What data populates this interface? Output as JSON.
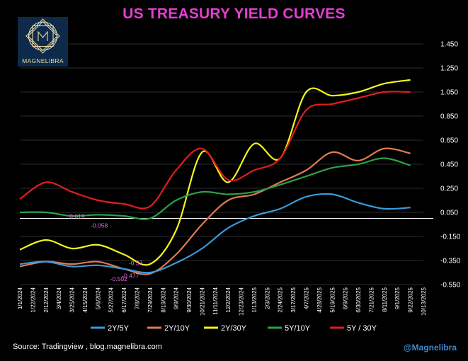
{
  "chart_data": {
    "type": "line",
    "title": "US TREASURY YIELD CURVES",
    "xlabel": "",
    "ylabel": "",
    "ylim": [
      -0.55,
      1.45
    ],
    "yticks": [
      "1.450",
      "1.250",
      "1.050",
      "0.850",
      "0.650",
      "0.450",
      "0.250",
      "0.050",
      "-0.150",
      "-0.350",
      "-0.550"
    ],
    "x_ticks": [
      "1/1/2024",
      "1/22/2024",
      "2/12/2024",
      "3/4/2024",
      "3/25/2024",
      "4/15/2024",
      "5/6/2024",
      "5/27/2024",
      "6/17/2024",
      "7/8/2024",
      "7/29/2024",
      "8/19/2024",
      "9/9/2024",
      "9/30/2024",
      "10/21/2024",
      "11/11/2024",
      "12/2/2024",
      "12/23/2024",
      "1/13/2025",
      "2/3/2025",
      "2/24/2025",
      "3/17/2025",
      "4/7/2025",
      "4/28/2025",
      "5/19/2025",
      "6/9/2025",
      "6/30/2025",
      "7/21/2025",
      "8/11/2025",
      "9/1/2025",
      "9/22/2025",
      "10/13/2025"
    ],
    "grid": true,
    "legend_position": "bottom",
    "series": [
      {
        "name": "2Y/5Y",
        "color": "#3a9ad9",
        "x": [
          0,
          2,
          4,
          6,
          8,
          10,
          12,
          14,
          16,
          18,
          20,
          22,
          24,
          26,
          28,
          30
        ],
        "values": [
          -0.38,
          -0.36,
          -0.4,
          -0.39,
          -0.42,
          -0.45,
          -0.37,
          -0.25,
          -0.08,
          0.02,
          0.08,
          0.18,
          0.2,
          0.13,
          0.08,
          0.09
        ]
      },
      {
        "name": "2Y/10Y",
        "color": "#e07b4f",
        "x": [
          0,
          2,
          4,
          6,
          8,
          10,
          12,
          14,
          16,
          18,
          20,
          22,
          24,
          26,
          28,
          30
        ],
        "values": [
          -0.4,
          -0.36,
          -0.38,
          -0.36,
          -0.42,
          -0.46,
          -0.3,
          -0.05,
          0.15,
          0.2,
          0.3,
          0.4,
          0.55,
          0.48,
          0.58,
          0.54
        ]
      },
      {
        "name": "2Y/30Y",
        "color": "#f5f51c",
        "x": [
          0,
          2,
          4,
          6,
          8,
          10,
          12,
          14,
          16,
          18,
          20,
          22,
          24,
          26,
          28,
          30
        ],
        "values": [
          -0.26,
          -0.18,
          -0.25,
          -0.22,
          -0.3,
          -0.38,
          -0.1,
          0.55,
          0.3,
          0.62,
          0.5,
          1.05,
          1.02,
          1.05,
          1.12,
          1.15
        ]
      },
      {
        "name": "5Y/10Y",
        "color": "#2aa14a",
        "x": [
          0,
          2,
          4,
          6,
          8,
          10,
          12,
          14,
          16,
          18,
          20,
          22,
          24,
          26,
          28,
          30
        ],
        "values": [
          0.05,
          0.05,
          0.02,
          0.03,
          0.02,
          0.0,
          0.15,
          0.22,
          0.2,
          0.22,
          0.28,
          0.35,
          0.42,
          0.45,
          0.5,
          0.44
        ]
      },
      {
        "name": "5Y / 30Y",
        "color": "#e21d1d",
        "x": [
          0,
          2,
          4,
          6,
          8,
          10,
          12,
          14,
          16,
          18,
          20,
          22,
          24,
          26,
          28,
          30
        ],
        "values": [
          0.16,
          0.3,
          0.22,
          0.15,
          0.12,
          0.1,
          0.4,
          0.58,
          0.32,
          0.4,
          0.5,
          0.9,
          0.95,
          1.0,
          1.05,
          1.05
        ]
      }
    ],
    "annotations": [
      {
        "text": "0.019",
        "x": 4.4,
        "y": 0.019,
        "color": "#e26ad3"
      },
      {
        "text": "-0.058",
        "x": 6.1,
        "y": -0.058,
        "color": "#e26ad3"
      },
      {
        "text": "-0.37",
        "x": 8.9,
        "y": -0.37,
        "color": "#e26ad3"
      },
      {
        "text": "-0.477",
        "x": 8.5,
        "y": -0.477,
        "color": "#e26ad3"
      },
      {
        "text": "-0.502",
        "x": 7.6,
        "y": -0.502,
        "color": "#e26ad3"
      }
    ],
    "zero_line_value": 0.0
  },
  "logo": {
    "text": "MAGNELIBRA"
  },
  "footer": {
    "source": "Source:  Tradingview , blog.magnelibra.com",
    "handle": "@Magnelibra"
  }
}
